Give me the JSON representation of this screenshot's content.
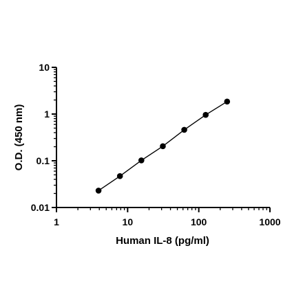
{
  "chart_data": {
    "type": "scatter",
    "title": "",
    "xlabel": "Human IL-8 (pg/ml)",
    "ylabel": "O.D. (450 nm)",
    "xscale": "log",
    "yscale": "log",
    "xlim": [
      1,
      1000
    ],
    "ylim": [
      0.01,
      10
    ],
    "x_ticks": [
      1,
      10,
      100,
      1000
    ],
    "x_tick_labels": [
      "1",
      "10",
      "100",
      "1000"
    ],
    "y_ticks": [
      0.01,
      0.1,
      1,
      10
    ],
    "y_tick_labels": [
      "0.01",
      "0.1",
      "1",
      "10"
    ],
    "grid": false,
    "legend": "none",
    "fit_line": true,
    "colors": {
      "points": "#000000",
      "line": "#000000",
      "axes": "#000000"
    },
    "series": [
      {
        "x": [
          3.9,
          7.8,
          15.6,
          31.25,
          62.5,
          125,
          250
        ],
        "y": [
          0.023,
          0.047,
          0.102,
          0.205,
          0.46,
          0.96,
          1.85
        ]
      }
    ]
  }
}
